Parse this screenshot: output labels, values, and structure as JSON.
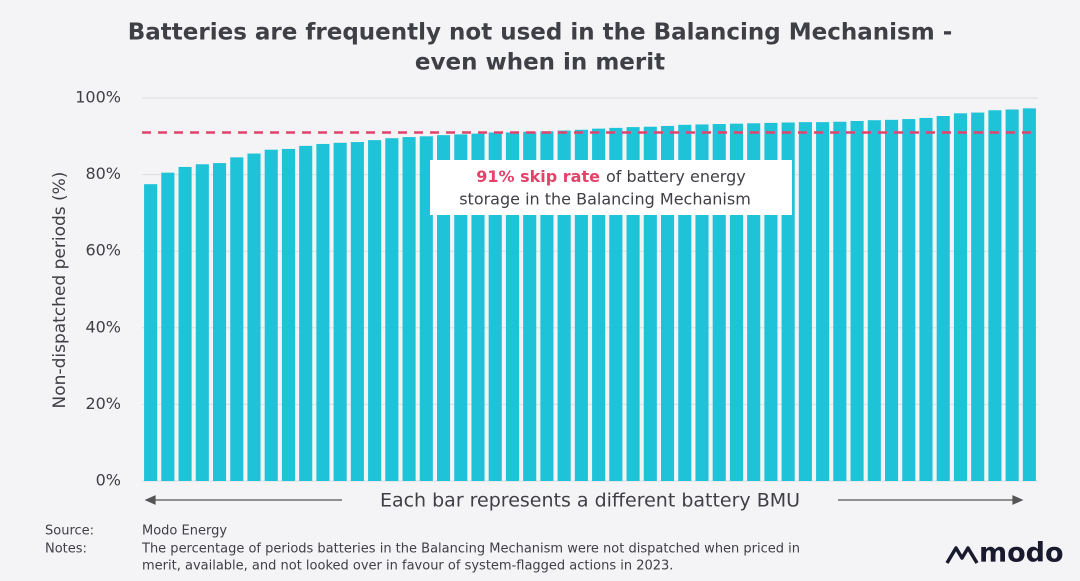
{
  "chart_data": {
    "type": "bar",
    "title": [
      "Batteries are frequently not used in the Balancing Mechanism -",
      "even when in merit"
    ],
    "y_label": "Non-dispatched periods (%)",
    "x_label": "Each bar represents a different battery BMU",
    "color": "#1ec3d8",
    "values": [
      77.5,
      80.5,
      82,
      82.7,
      83,
      84.5,
      85.5,
      86.5,
      86.7,
      87.5,
      88,
      88.3,
      88.5,
      89,
      89.5,
      89.8,
      90,
      90.3,
      90.5,
      90.7,
      91,
      91,
      91.2,
      91.3,
      91.5,
      91.7,
      92,
      92.2,
      92.4,
      92.5,
      92.7,
      93,
      93.1,
      93.2,
      93.3,
      93.4,
      93.5,
      93.6,
      93.7,
      93.7,
      93.8,
      94,
      94.2,
      94.3,
      94.5,
      94.8,
      95.3,
      96,
      96.2,
      96.8,
      97,
      97.3
    ],
    "ylim": [
      0,
      100
    ],
    "yticks": [
      {
        "value": 0,
        "label": "0%"
      },
      {
        "value": 20,
        "label": "20%"
      },
      {
        "value": 40,
        "label": "40%"
      },
      {
        "value": 60,
        "label": "60%"
      },
      {
        "value": 80,
        "label": "80%"
      },
      {
        "value": 100,
        "label": "100%"
      }
    ],
    "reference_line": {
      "value": 91,
      "color": "#e5426a"
    },
    "annotation": {
      "highlight": "91% skip rate",
      "text": [
        "of battery energy",
        "storage in the Balancing Mechanism"
      ]
    }
  },
  "footer": {
    "source_label": "Source:",
    "source": "Modo Energy",
    "notes_label": "Notes:",
    "notes": [
      "The percentage of periods batteries in the Balancing Mechanism were not dispatched when priced in",
      "merit, available, and not looked over in favour of system-flagged actions in 2023."
    ],
    "logo": "modo"
  }
}
